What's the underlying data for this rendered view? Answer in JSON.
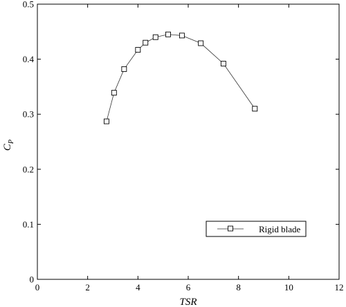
{
  "chart_data": {
    "type": "line",
    "title": "",
    "xlabel": "TSR",
    "ylabel_main": "C",
    "ylabel_sub": "P",
    "xlim": [
      0,
      12
    ],
    "ylim": [
      0,
      0.5
    ],
    "x_ticks": [
      0,
      2,
      4,
      6,
      8,
      10,
      12
    ],
    "y_ticks": [
      0,
      0.1,
      0.2,
      0.3,
      0.4,
      0.5
    ],
    "x_tick_labels": [
      "0",
      "2",
      "4",
      "6",
      "8",
      "10",
      "12"
    ],
    "y_tick_labels": [
      "0",
      "0.1",
      "0.2",
      "0.3",
      "0.4",
      "0.5"
    ],
    "grid": false,
    "legend_position": "lower-right",
    "series": [
      {
        "name": "Rigid blade",
        "marker": "square",
        "color": "#000000",
        "x": [
          2.75,
          3.05,
          3.45,
          4.0,
          4.3,
          4.7,
          5.2,
          5.75,
          6.5,
          7.4,
          8.65
        ],
        "y": [
          0.287,
          0.339,
          0.382,
          0.417,
          0.43,
          0.44,
          0.445,
          0.443,
          0.429,
          0.392,
          0.31
        ]
      }
    ]
  }
}
